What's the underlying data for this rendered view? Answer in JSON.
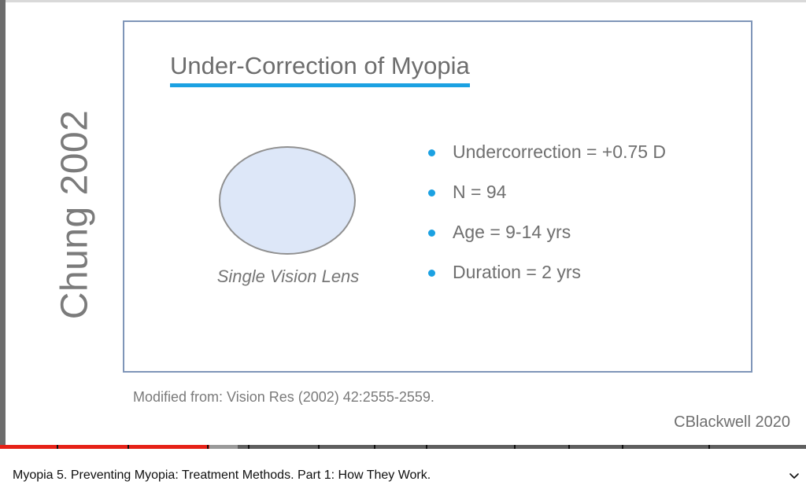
{
  "slide": {
    "side_title": "Chung 2002",
    "heading": "Under-Correction of Myopia",
    "lens_caption": "Single Vision Lens",
    "bullets": [
      "Undercorrection = +0.75 D",
      "N = 94",
      "Age = 9-14 yrs",
      "Duration = 2 yrs"
    ],
    "source_note": "Modified from: Vision Res (2002) 42:2555-2559.",
    "credit": "CBlackwell 2020"
  },
  "player": {
    "progress_fraction": 0.26,
    "video_title": "Myopia 5. Preventing Myopia: Treatment Methods. Part 1: How They Work.",
    "expand_icon": "chevron-down-icon"
  },
  "colors": {
    "accent_blue": "#1ba1e2",
    "frame_border": "#7f95b8",
    "lens_fill": "#dde7f8",
    "progress_red": "#e62117"
  }
}
